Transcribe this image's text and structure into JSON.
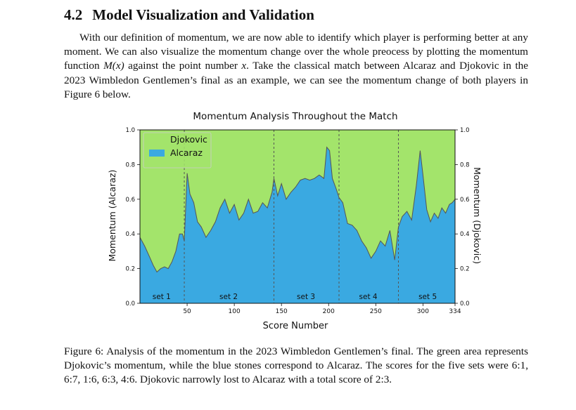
{
  "heading": {
    "number": "4.2",
    "title": "Model Visualization and Validation"
  },
  "paragraph": "With our definition of momentum, we are now able to identify which player is performing better at any moment. We can also visualize the momentum change over the whole preocess by plotting the momentum function M(x) against the point number x. Take the classical match between Alcaraz and Djokovic in the 2023 Wimbledon Gentlemen’s final as an example, we can see the momentum change of both players in Figure 6 below.",
  "paragraph_parts": {
    "before": "With our definition of momentum, we are now able to identify which player is performing better at any moment. We can also visualize the momentum change over the whole preocess by plotting the momentum function ",
    "math_fn": "M(x)",
    "middle": " against the point number ",
    "math_var": "x",
    "after": ". Take the classical match between Alcaraz and Djokovic in the 2023 Wimbledon Gentlemen’s final as an example, we can see the momentum change of both players in Figure 6 below."
  },
  "caption": "Figure 6: Analysis of the momentum in the 2023 Wimbledon Gentlemen’s final. The green area represents Djokovic’s momentum, while the blue stones correspond to Alcaraz. The scores for the five sets were 6:1, 6:7, 1:6, 6:3, 4:6. Djokovic narrowly lost to Alcaraz with a total score of 2:3.",
  "colors": {
    "djokovic": "#a3e46b",
    "alcaraz": "#3aa9e1",
    "line": "#555555",
    "set_divider": "#555555"
  },
  "chart_data": {
    "type": "area",
    "title": "Momentum Analysis Throughout the Match",
    "xlabel": "Score Number",
    "ylabel_left": "Momentum (Alcaraz)",
    "ylabel_right": "Momentum (Djokovic)",
    "xlim": [
      0,
      334
    ],
    "ylim": [
      0,
      1
    ],
    "x_ticks": [
      50,
      100,
      150,
      200,
      250,
      300,
      334
    ],
    "y_ticks_left": [
      "0.0",
      "0.2",
      "0.4",
      "0.6",
      "0.8",
      "1.0"
    ],
    "y_ticks_right": [
      "1.0",
      "0.8",
      "0.6",
      "0.4",
      "0.2",
      "0.0"
    ],
    "legend": {
      "placement": "top-left",
      "entries": [
        "Djokovic",
        "Alcaraz"
      ]
    },
    "set_boundaries": [
      47,
      142,
      211,
      274
    ],
    "set_labels": [
      {
        "label": "set 1",
        "x": 23
      },
      {
        "label": "set 2",
        "x": 94
      },
      {
        "label": "set 3",
        "x": 176
      },
      {
        "label": "set 4",
        "x": 242
      },
      {
        "label": "set 5",
        "x": 305
      }
    ],
    "series": [
      {
        "name": "Alcaraz",
        "x": [
          0,
          5,
          10,
          14,
          18,
          22,
          26,
          30,
          34,
          38,
          42,
          45,
          47,
          50,
          53,
          57,
          61,
          65,
          70,
          75,
          80,
          85,
          90,
          95,
          100,
          105,
          110,
          115,
          120,
          125,
          130,
          135,
          140,
          142,
          146,
          150,
          155,
          160,
          165,
          170,
          175,
          180,
          185,
          190,
          195,
          198,
          201,
          204,
          208,
          211,
          215,
          220,
          225,
          230,
          235,
          240,
          245,
          250,
          255,
          260,
          265,
          270,
          274,
          278,
          283,
          288,
          293,
          297,
          300,
          304,
          308,
          312,
          316,
          320,
          324,
          328,
          331,
          334
        ],
        "values": [
          0.38,
          0.33,
          0.27,
          0.22,
          0.18,
          0.2,
          0.21,
          0.2,
          0.24,
          0.3,
          0.4,
          0.4,
          0.36,
          0.75,
          0.63,
          0.58,
          0.47,
          0.44,
          0.38,
          0.42,
          0.47,
          0.55,
          0.6,
          0.52,
          0.57,
          0.48,
          0.52,
          0.6,
          0.52,
          0.53,
          0.58,
          0.55,
          0.64,
          0.72,
          0.62,
          0.69,
          0.6,
          0.64,
          0.67,
          0.71,
          0.72,
          0.71,
          0.72,
          0.74,
          0.72,
          0.9,
          0.88,
          0.72,
          0.66,
          0.61,
          0.58,
          0.46,
          0.45,
          0.42,
          0.36,
          0.32,
          0.26,
          0.3,
          0.36,
          0.33,
          0.42,
          0.25,
          0.44,
          0.5,
          0.53,
          0.48,
          0.68,
          0.88,
          0.74,
          0.54,
          0.47,
          0.52,
          0.49,
          0.55,
          0.52,
          0.57,
          0.58,
          0.6
        ]
      }
    ]
  }
}
